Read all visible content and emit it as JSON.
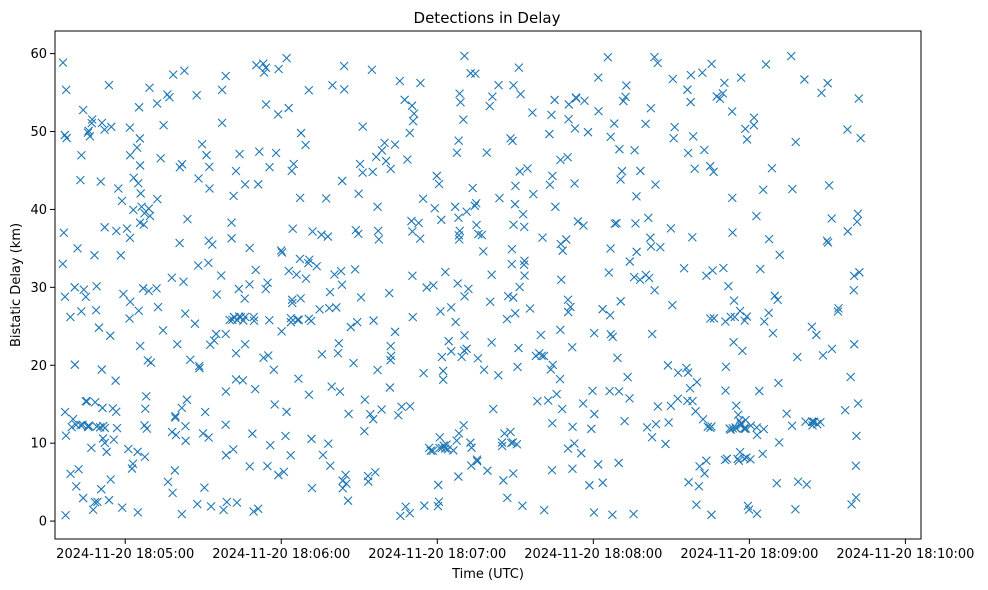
{
  "chart_data": {
    "type": "scatter",
    "title": "Detections in Delay",
    "xlabel": "Time (UTC)",
    "ylabel": "Bistatic Delay (km)",
    "marker": "x",
    "marker_color": "#1f77b4",
    "x_tick_labels": [
      "2024-11-20 18:05:00",
      "2024-11-20 18:06:00",
      "2024-11-20 18:07:00",
      "2024-11-20 18:08:00",
      "2024-11-20 18:09:00",
      "2024-11-20 18:10:00"
    ],
    "x_ticks": [
      "18:05:00",
      "18:06:00",
      "18:07:00",
      "18:08:00",
      "18:09:00",
      "18:10:00"
    ],
    "xlim": [
      "18:04:33",
      "18:10:06"
    ],
    "y_ticks": [
      0,
      10,
      20,
      30,
      40,
      50,
      60
    ],
    "ylim": [
      -2.3,
      62.9
    ],
    "grid": false,
    "clusters": [
      {
        "t": [
          3,
          85
        ],
        "y": [
          0.5,
          60
        ],
        "n": 210
      },
      {
        "t": [
          85,
          175
        ],
        "y": [
          0.5,
          60
        ],
        "n": 200
      },
      {
        "t": [
          175,
          240
        ],
        "y": [
          0.5,
          60
        ],
        "n": 150
      },
      {
        "t": [
          240,
          310
        ],
        "y": [
          0.5,
          60
        ],
        "n": 120
      }
    ],
    "line_clusters": [
      {
        "t": [
          8,
          22
        ],
        "y": 12.2,
        "n": 10
      },
      {
        "t": [
          65,
          78
        ],
        "y": 26,
        "n": 10
      },
      {
        "t": [
          90,
          100
        ],
        "y": 25.8,
        "n": 6
      },
      {
        "t": [
          143,
          154
        ],
        "y": 9.3,
        "n": 8
      },
      {
        "t": [
          170,
          178
        ],
        "y": 9.9,
        "n": 5
      },
      {
        "t": [
          250,
          270
        ],
        "y": 12.0,
        "n": 12
      },
      {
        "t": [
          250,
          270
        ],
        "y": 8.0,
        "n": 8
      },
      {
        "t": [
          250,
          268
        ],
        "y": 26.0,
        "n": 6
      },
      {
        "t": [
          288,
          296
        ],
        "y": 12.5,
        "n": 6
      }
    ]
  }
}
